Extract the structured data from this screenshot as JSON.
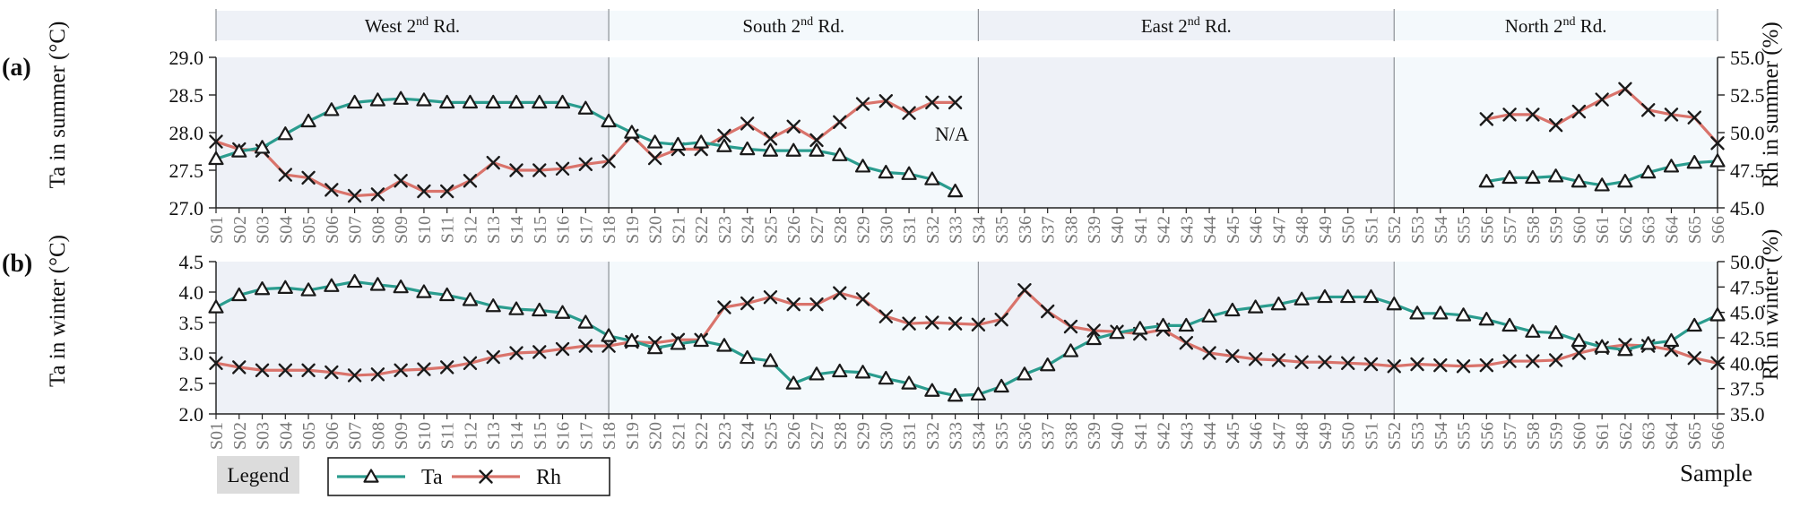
{
  "chart_data": {
    "type": "line",
    "x_label": "Sample",
    "samples": [
      "S01",
      "S02",
      "S03",
      "S04",
      "S05",
      "S06",
      "S07",
      "S08",
      "S09",
      "S10",
      "S11",
      "S12",
      "S13",
      "S14",
      "S15",
      "S16",
      "S17",
      "S18",
      "S19",
      "S20",
      "S21",
      "S22",
      "S23",
      "S24",
      "S25",
      "S26",
      "S27",
      "S28",
      "S29",
      "S30",
      "S31",
      "S32",
      "S33",
      "S34",
      "S35",
      "S36",
      "S37",
      "S38",
      "S39",
      "S40",
      "S41",
      "S42",
      "S43",
      "S44",
      "S45",
      "S46",
      "S47",
      "S48",
      "S49",
      "S50",
      "S51",
      "S52",
      "S53",
      "S54",
      "S55",
      "S56",
      "S57",
      "S58",
      "S59",
      "S60",
      "S61",
      "S62",
      "S63",
      "S64",
      "S65",
      "S66"
    ],
    "segments": [
      {
        "label_main": "West 2",
        "label_sup": "nd",
        "label_end": " Rd.",
        "start": 1,
        "end": 18,
        "shade": "#eef1f7"
      },
      {
        "label_main": "South 2",
        "label_sup": "nd",
        "label_end": " Rd.",
        "start": 18,
        "end": 34,
        "shade": "#f4f9fc"
      },
      {
        "label_main": "East 2",
        "label_sup": "nd",
        "label_end": " Rd.",
        "start": 34,
        "end": 52,
        "shade": "#eef1f7"
      },
      {
        "label_main": "North 2",
        "label_sup": "nd",
        "label_end": " Rd.",
        "start": 52,
        "end": 66,
        "shade": "#f4f9fc"
      }
    ],
    "panels": [
      {
        "panel_label": "(a)",
        "left_label": "Ta in summer (°C)",
        "right_label": "Rh in summer (%)",
        "left_ticks": [
          "27.0",
          "27.5",
          "28.0",
          "28.5",
          "29.0"
        ],
        "right_ticks": [
          "45.0",
          "47.5",
          "50.0",
          "52.5",
          "55.0"
        ],
        "left_range": [
          27.0,
          29.0
        ],
        "right_range": [
          45.0,
          55.0
        ],
        "na_text": "N/A",
        "ta": [
          {
            "x": 1,
            "values": [
              27.65,
              27.75,
              27.8,
              27.98,
              28.15,
              28.3,
              28.4,
              28.43,
              28.45,
              28.43,
              28.4,
              28.4,
              28.4,
              28.4,
              28.4,
              28.4,
              28.32,
              28.15,
              28.0,
              27.87,
              27.84,
              27.87,
              27.82,
              27.78,
              27.76,
              27.76,
              27.76,
              27.7,
              27.55,
              27.47,
              27.45,
              27.38,
              27.22
            ]
          },
          {
            "x": 56,
            "values": [
              27.35,
              27.4,
              27.4,
              27.42,
              27.35,
              27.3,
              27.35,
              27.47,
              27.55,
              27.6,
              27.62
            ]
          }
        ],
        "rh": [
          {
            "x": 1,
            "values": [
              49.4,
              48.9,
              48.8,
              47.2,
              47.0,
              46.2,
              45.8,
              45.9,
              46.8,
              46.1,
              46.1,
              46.8,
              48.0,
              47.5,
              47.5,
              47.6,
              47.9,
              48.1,
              49.8,
              48.3,
              48.9,
              48.9,
              49.8,
              50.6,
              49.6,
              50.4,
              49.5,
              50.7,
              51.9,
              52.1,
              51.3,
              52.0,
              52.0
            ]
          },
          {
            "x": 56,
            "values": [
              50.9,
              51.2,
              51.2,
              50.5,
              51.4,
              52.2,
              52.9,
              51.5,
              51.2,
              51.0,
              49.3
            ]
          }
        ]
      },
      {
        "panel_label": "(b)",
        "left_label": "Ta in winter (°C)",
        "right_label": "Rh in winter (%)",
        "left_ticks": [
          "2.0",
          "2.5",
          "3.0",
          "3.5",
          "4.0",
          "4.5"
        ],
        "right_ticks": [
          "35.0",
          "37.5",
          "40.0",
          "42.5",
          "45.0",
          "47.5",
          "50.0"
        ],
        "left_range": [
          2.0,
          4.5
        ],
        "right_range": [
          35.0,
          50.0
        ],
        "ta": [
          {
            "x": 1,
            "values": [
              3.75,
              3.95,
              4.05,
              4.07,
              4.03,
              4.1,
              4.17,
              4.12,
              4.08,
              4.0,
              3.95,
              3.87,
              3.77,
              3.72,
              3.7,
              3.66,
              3.5,
              3.28,
              3.2,
              3.08,
              3.15,
              3.2,
              3.12,
              2.92,
              2.87,
              2.5,
              2.65,
              2.7,
              2.68,
              2.58,
              2.5,
              2.38,
              2.3,
              2.32,
              2.45,
              2.65,
              2.8,
              3.03,
              3.23,
              3.33,
              3.4,
              3.45,
              3.45,
              3.6,
              3.7,
              3.75,
              3.8,
              3.88,
              3.92,
              3.92,
              3.92,
              3.8,
              3.65,
              3.65,
              3.62,
              3.55,
              3.45,
              3.35,
              3.33,
              3.2,
              3.1,
              3.05,
              3.15,
              3.2,
              3.45,
              3.62
            ]
          }
        ],
        "rh": [
          {
            "x": 1,
            "values": [
              40.0,
              39.6,
              39.3,
              39.3,
              39.3,
              39.1,
              38.8,
              38.9,
              39.3,
              39.4,
              39.6,
              40.0,
              40.6,
              41.0,
              41.1,
              41.4,
              41.7,
              41.7,
              42.1,
              42.0,
              42.3,
              42.3,
              45.5,
              45.9,
              46.5,
              45.8,
              45.8,
              46.9,
              46.3,
              44.6,
              43.9,
              44.0,
              43.9,
              43.8,
              44.3,
              47.2,
              45.1,
              43.6,
              43.2,
              43.1,
              42.9,
              43.3,
              42.0,
              41.0,
              40.7,
              40.4,
              40.3,
              40.1,
              40.1,
              40.0,
              39.9,
              39.7,
              39.9,
              39.8,
              39.7,
              39.8,
              40.2,
              40.2,
              40.3,
              41.0,
              41.5,
              41.8,
              41.7,
              41.3,
              40.5,
              40.0
            ]
          }
        ]
      }
    ],
    "legend": {
      "title": "Legend",
      "ta_label": "Ta",
      "rh_label": "Rh"
    },
    "colors": {
      "ta_line": "#2a9c8e",
      "rh_line": "#d9736b",
      "marker": "#1a1a1a",
      "frame": "#8c9196",
      "legend_title_bg": "#dcdcdc"
    }
  }
}
